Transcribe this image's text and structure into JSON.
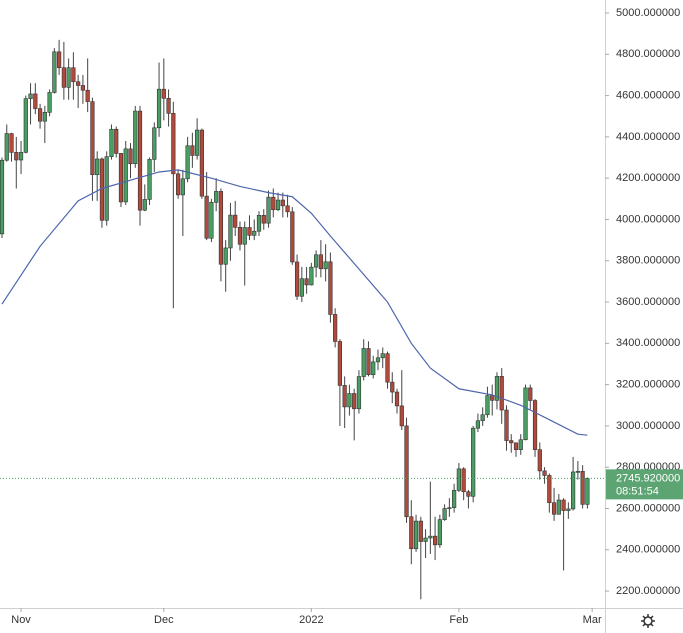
{
  "chart_data": {
    "type": "candlestick",
    "open": [
      3930,
      4287,
      4416,
      4325,
      4288,
      4325,
      4585,
      4608,
      4537,
      4476,
      4519,
      4615,
      4812,
      4735,
      4640,
      4735,
      4667,
      4649,
      4626,
      4571,
      4217,
      4293,
      3996,
      4304,
      4437,
      4320,
      4085,
      4342,
      4270,
      4525,
      4045,
      4097,
      4291,
      4444,
      4631,
      4587,
      4514,
      4221,
      4119,
      4197,
      4357,
      4310,
      4433,
      4113,
      3909,
      4083,
      4136,
      3783,
      3862,
      4021,
      3962,
      3880,
      3961,
      3923,
      3943,
      4020,
      3982,
      4108,
      4047,
      4094,
      4066,
      4037,
      3794,
      3628,
      3713,
      3683,
      3769,
      3829,
      3761,
      3795,
      3540,
      3409,
      3196,
      3092,
      3157,
      3083,
      3239,
      3375,
      3248,
      3310,
      3330,
      3350,
      3212,
      3164,
      3097,
      3000,
      2560,
      2405,
      2539,
      2440,
      2457,
      2466,
      2424,
      2546,
      2600,
      2604,
      2688,
      2792,
      2681,
      2659,
      2989,
      3025,
      3054,
      3147,
      3124,
      3240,
      3077,
      2929,
      2918,
      2885,
      2933,
      3184,
      3123,
      2885,
      2782,
      2760,
      2628,
      2572,
      2641,
      2590,
      2598,
      2777,
      2780,
      2620
    ],
    "high": [
      4300,
      4460,
      4420,
      4400,
      4380,
      4600,
      4660,
      4660,
      4560,
      4550,
      4630,
      4830,
      4870,
      4860,
      4780,
      4810,
      4700,
      4700,
      4780,
      4590,
      4330,
      4300,
      4330,
      4460,
      4450,
      4320,
      4380,
      4370,
      4550,
      4550,
      4170,
      4300,
      4470,
      4760,
      4780,
      4630,
      4570,
      4240,
      4240,
      4400,
      4420,
      4490,
      4440,
      4230,
      4100,
      4200,
      4150,
      3900,
      4080,
      4090,
      3990,
      3990,
      4020,
      4000,
      4040,
      4050,
      4140,
      4150,
      4130,
      4130,
      4120,
      4060,
      3830,
      3770,
      3770,
      3790,
      3850,
      3900,
      3880,
      3840,
      3570,
      3420,
      3240,
      3200,
      3180,
      3270,
      3420,
      3410,
      3340,
      3370,
      3380,
      3360,
      3260,
      3180,
      3270,
      3040,
      2640,
      2570,
      2560,
      2500,
      2730,
      2560,
      2570,
      2620,
      2650,
      2720,
      2820,
      2800,
      2690,
      3000,
      3060,
      3090,
      3190,
      3200,
      3260,
      3280,
      3100,
      2960,
      2920,
      2960,
      3200,
      3200,
      3130,
      2920,
      2800,
      2770,
      2700,
      2670,
      2650,
      2630,
      2850,
      2830,
      2810,
      2750
    ],
    "low": [
      3910,
      4280,
      4280,
      4150,
      4220,
      4320,
      4460,
      4510,
      4440,
      4370,
      4500,
      4610,
      4700,
      4580,
      4580,
      4580,
      4540,
      4560,
      4520,
      4090,
      4090,
      3960,
      3970,
      4290,
      4300,
      4060,
      4070,
      4200,
      4250,
      3970,
      4040,
      4070,
      4230,
      4400,
      4480,
      4450,
      3570,
      4100,
      3920,
      4180,
      4250,
      4290,
      4100,
      3900,
      3890,
      4040,
      3700,
      3650,
      3800,
      3920,
      3850,
      3680,
      3900,
      3900,
      3920,
      3950,
      3960,
      4010,
      4040,
      4010,
      4010,
      3780,
      3610,
      3600,
      3640,
      3680,
      3720,
      3720,
      3700,
      3500,
      3380,
      3000,
      2990,
      3050,
      2930,
      3060,
      3220,
      3240,
      3230,
      3270,
      3280,
      3180,
      3110,
      3060,
      2980,
      2530,
      2330,
      2390,
      2160,
      2360,
      2380,
      2350,
      2410,
      2540,
      2560,
      2580,
      2680,
      2640,
      2600,
      2630,
      2970,
      3000,
      3040,
      3050,
      3080,
      3010,
      2880,
      2870,
      2850,
      2860,
      2930,
      3080,
      2850,
      2740,
      2720,
      2580,
      2540,
      2570,
      2300,
      2550,
      2590,
      2740,
      2600,
      2600
    ],
    "close": [
      4287,
      4416,
      4325,
      4288,
      4325,
      4585,
      4608,
      4537,
      4476,
      4519,
      4615,
      4812,
      4735,
      4640,
      4735,
      4667,
      4649,
      4626,
      4571,
      4217,
      4293,
      3996,
      4304,
      4437,
      4320,
      4085,
      4342,
      4270,
      4525,
      4045,
      4097,
      4291,
      4444,
      4631,
      4587,
      4514,
      4221,
      4119,
      4197,
      4357,
      4310,
      4433,
      4113,
      3909,
      4083,
      4136,
      3783,
      3862,
      4021,
      3962,
      3880,
      3961,
      3923,
      3943,
      4020,
      3982,
      4108,
      4047,
      4094,
      4066,
      4037,
      3794,
      3628,
      3713,
      3683,
      3769,
      3829,
      3761,
      3795,
      3540,
      3409,
      3196,
      3092,
      3157,
      3083,
      3239,
      3375,
      3248,
      3310,
      3330,
      3350,
      3212,
      3164,
      3097,
      3000,
      2560,
      2405,
      2539,
      2440,
      2457,
      2466,
      2424,
      2546,
      2600,
      2604,
      2688,
      2792,
      2681,
      2659,
      2989,
      3025,
      3054,
      3147,
      3124,
      3240,
      3077,
      2929,
      2918,
      2885,
      2933,
      3184,
      3123,
      2885,
      2782,
      2760,
      2628,
      2572,
      2641,
      2590,
      2598,
      2777,
      2780,
      2620,
      2745.92
    ],
    "up_color": "#4a9d63",
    "down_color": "#b04a3c",
    "moving_average": {
      "x": [
        0,
        8,
        16,
        21,
        27,
        33,
        37,
        44,
        50,
        56,
        61,
        65,
        69,
        75,
        81,
        86,
        90,
        96,
        103,
        109,
        115,
        121,
        123
      ],
      "values": [
        3590,
        3870,
        4090,
        4150,
        4190,
        4230,
        4240,
        4200,
        4160,
        4130,
        4110,
        4030,
        3920,
        3760,
        3600,
        3400,
        3280,
        3180,
        3150,
        3100,
        3030,
        2960,
        2955
      ],
      "color": "#4f66ad"
    },
    "last_price": {
      "value": 2745.92,
      "label": "2745.920000"
    },
    "countdown": "08:51:54",
    "xlim": [
      -0.42,
      126.7
    ],
    "xticks": [
      {
        "value": 4,
        "label": "Nov"
      },
      {
        "value": 34,
        "label": "Dec"
      },
      {
        "value": 65,
        "label": "2022"
      },
      {
        "value": 96,
        "label": "Feb"
      },
      {
        "value": 124,
        "label": "Mar"
      }
    ],
    "ylim": [
      2118,
      5063
    ],
    "yticks": [
      {
        "value": 2200,
        "label": "2200.000000"
      },
      {
        "value": 2400,
        "label": "2400.000000"
      },
      {
        "value": 2600,
        "label": "2600.000000"
      },
      {
        "value": 2800,
        "label": "2800.000000"
      },
      {
        "value": 3000,
        "label": "3000.000000"
      },
      {
        "value": 3200,
        "label": "3200.000000"
      },
      {
        "value": 3400,
        "label": "3400.000000"
      },
      {
        "value": 3600,
        "label": "3600.000000"
      },
      {
        "value": 3800,
        "label": "3800.000000"
      },
      {
        "value": 4000,
        "label": "4000.000000"
      },
      {
        "value": 4200,
        "label": "4200.000000"
      },
      {
        "value": 4400,
        "label": "4400.000000"
      },
      {
        "value": 4600,
        "label": "4600.000000"
      },
      {
        "value": 4800,
        "label": "4800.000000"
      },
      {
        "value": 5000,
        "label": "5000.000000"
      }
    ],
    "grid": false
  }
}
